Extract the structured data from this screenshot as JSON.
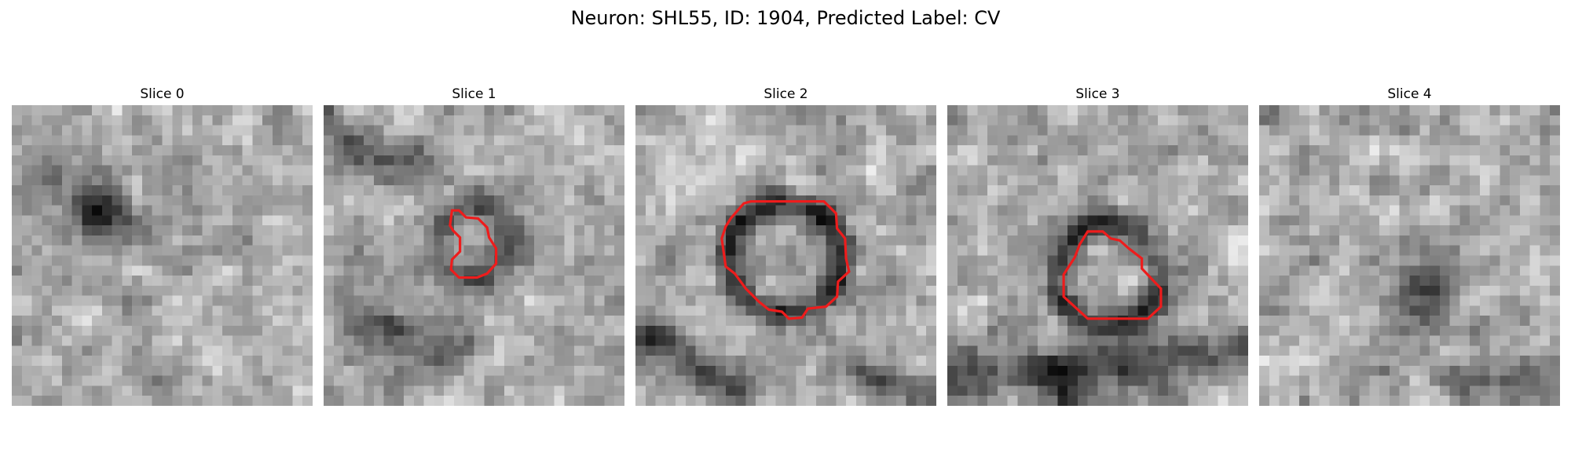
{
  "figure": {
    "title": "Neuron: SHL55, ID: 1904, Predicted Label: CV",
    "contour_color": "#ee1c1c"
  },
  "panels": [
    {
      "title": "Slice 0",
      "has_contour": false
    },
    {
      "title": "Slice 1",
      "has_contour": true
    },
    {
      "title": "Slice 2",
      "has_contour": true
    },
    {
      "title": "Slice 3",
      "has_contour": true
    },
    {
      "title": "Slice 4",
      "has_contour": false
    }
  ]
}
